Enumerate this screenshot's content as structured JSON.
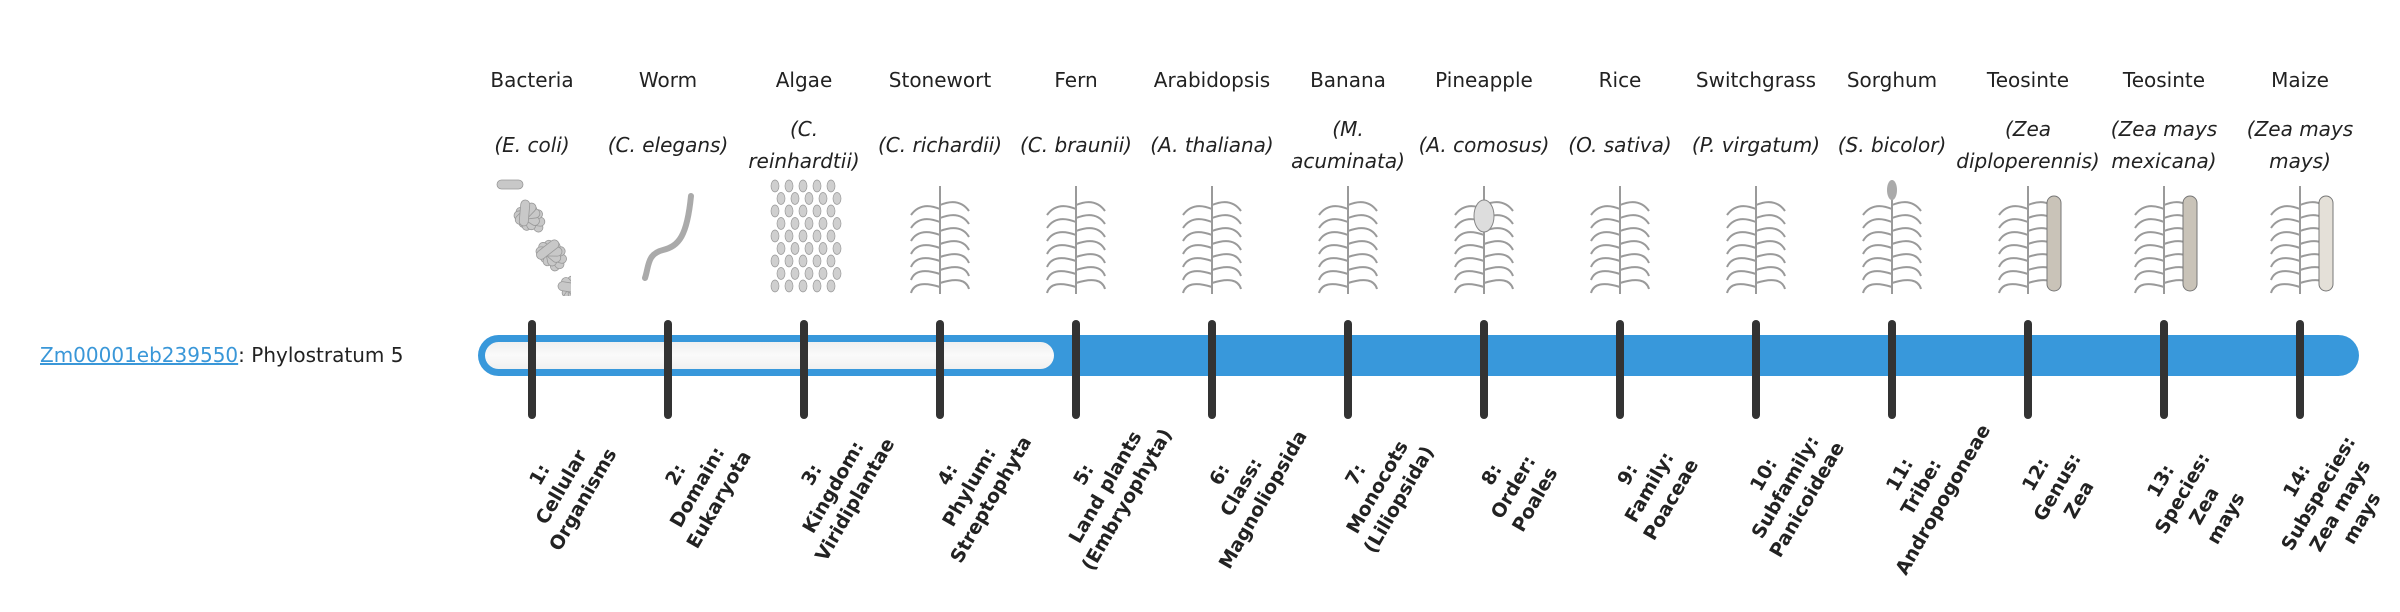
{
  "gene": {
    "id": "Zm00001eb239550",
    "separator": ": ",
    "stratum_text": "Phylostratum 5"
  },
  "progress": {
    "value": 5,
    "max": 14
  },
  "colors": {
    "bar": "#3898db",
    "link": "#3a97d8",
    "tick": "#333333"
  },
  "organisms": [
    {
      "common": "Bacteria",
      "scientific": "(E. coli)",
      "icon": "bacteria-image",
      "stratum": [
        "1:",
        "Cellular",
        "Organisms"
      ]
    },
    {
      "common": "Worm",
      "scientific": "(C. elegans)",
      "icon": "worm-image",
      "stratum": [
        "2:",
        "Domain:",
        "Eukaryota"
      ]
    },
    {
      "common": "Algae",
      "scientific": "(C. reinhardtii)",
      "icon": "algae-image",
      "stratum": [
        "3:",
        "Kingdom:",
        "Viridiplantae"
      ]
    },
    {
      "common": "Stonewort",
      "scientific": "(C. richardii)",
      "icon": "stonewort-image",
      "stratum": [
        "4:",
        "Phylum:",
        "Streptophyta"
      ]
    },
    {
      "common": "Fern",
      "scientific": "(C. braunii)",
      "icon": "fern-image",
      "stratum": [
        "5:",
        "Land plants",
        "(Embryophyta)"
      ]
    },
    {
      "common": "Arabidopsis",
      "scientific": "(A. thaliana)",
      "icon": "arabidopsis-image",
      "stratum": [
        "6:",
        "Class:",
        "Magnoliopsida"
      ]
    },
    {
      "common": "Banana",
      "scientific": "(M. acuminata)",
      "icon": "banana-image",
      "stratum": [
        "7:",
        "Monocots",
        "(Liliopsida)"
      ]
    },
    {
      "common": "Pineapple",
      "scientific": "(A. comosus)",
      "icon": "pineapple-image",
      "stratum": [
        "8:",
        "Order:",
        "Poales"
      ]
    },
    {
      "common": "Rice",
      "scientific": "(O. sativa)",
      "icon": "rice-image",
      "stratum": [
        "9:",
        "Family:",
        "Poaceae"
      ]
    },
    {
      "common": "Switchgrass",
      "scientific": "(P. virgatum)",
      "icon": "switchgrass-image",
      "stratum": [
        "10:",
        "Subfamily:",
        "Panicoideae"
      ]
    },
    {
      "common": "Sorghum",
      "scientific": "(S. bicolor)",
      "icon": "sorghum-image",
      "stratum": [
        "11:",
        "Tribe:",
        "Andropogoneae"
      ]
    },
    {
      "common": "Teosinte",
      "scientific": "(Zea diploperennis)",
      "icon": "teosinte-image",
      "stratum": [
        "12:",
        "Genus:",
        "Zea"
      ]
    },
    {
      "common": "Teosinte",
      "scientific": "(Zea mays mexicana)",
      "icon": "teosinte-mexicana-image",
      "stratum": [
        "13:",
        "Species:",
        "Zea",
        "mays"
      ]
    },
    {
      "common": "Maize",
      "scientific": "(Zea mays mays)",
      "icon": "maize-image",
      "stratum": [
        "14:",
        "Subspecies:",
        "Zea mays",
        "mays"
      ]
    }
  ]
}
